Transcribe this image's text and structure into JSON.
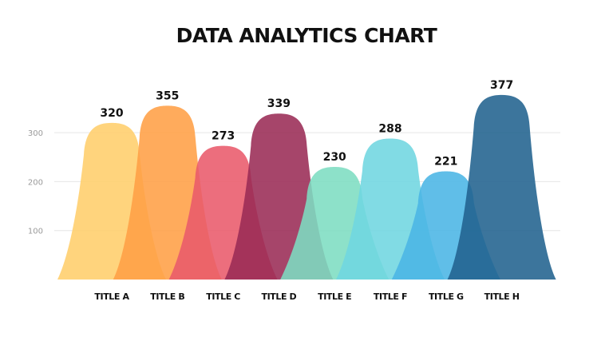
{
  "chart_data": {
    "type": "area",
    "title": "DATA ANALYTICS CHART",
    "xlabel": "",
    "ylabel": "",
    "ylim": [
      0,
      400
    ],
    "yticks": [
      100,
      200,
      300
    ],
    "grid": true,
    "categories": [
      "TITLE A",
      "TITLE B",
      "TITLE C",
      "TITLE D",
      "TITLE E",
      "TITLE F",
      "TITLE G",
      "TITLE H"
    ],
    "values": [
      320,
      355,
      273,
      339,
      230,
      288,
      221,
      377
    ],
    "colors": [
      "#FFCE6B",
      "#FF9F45",
      "#E95A6B",
      "#9A2B55",
      "#7DDDC1",
      "#6FD6E0",
      "#4AB5E5",
      "#21628E"
    ]
  }
}
